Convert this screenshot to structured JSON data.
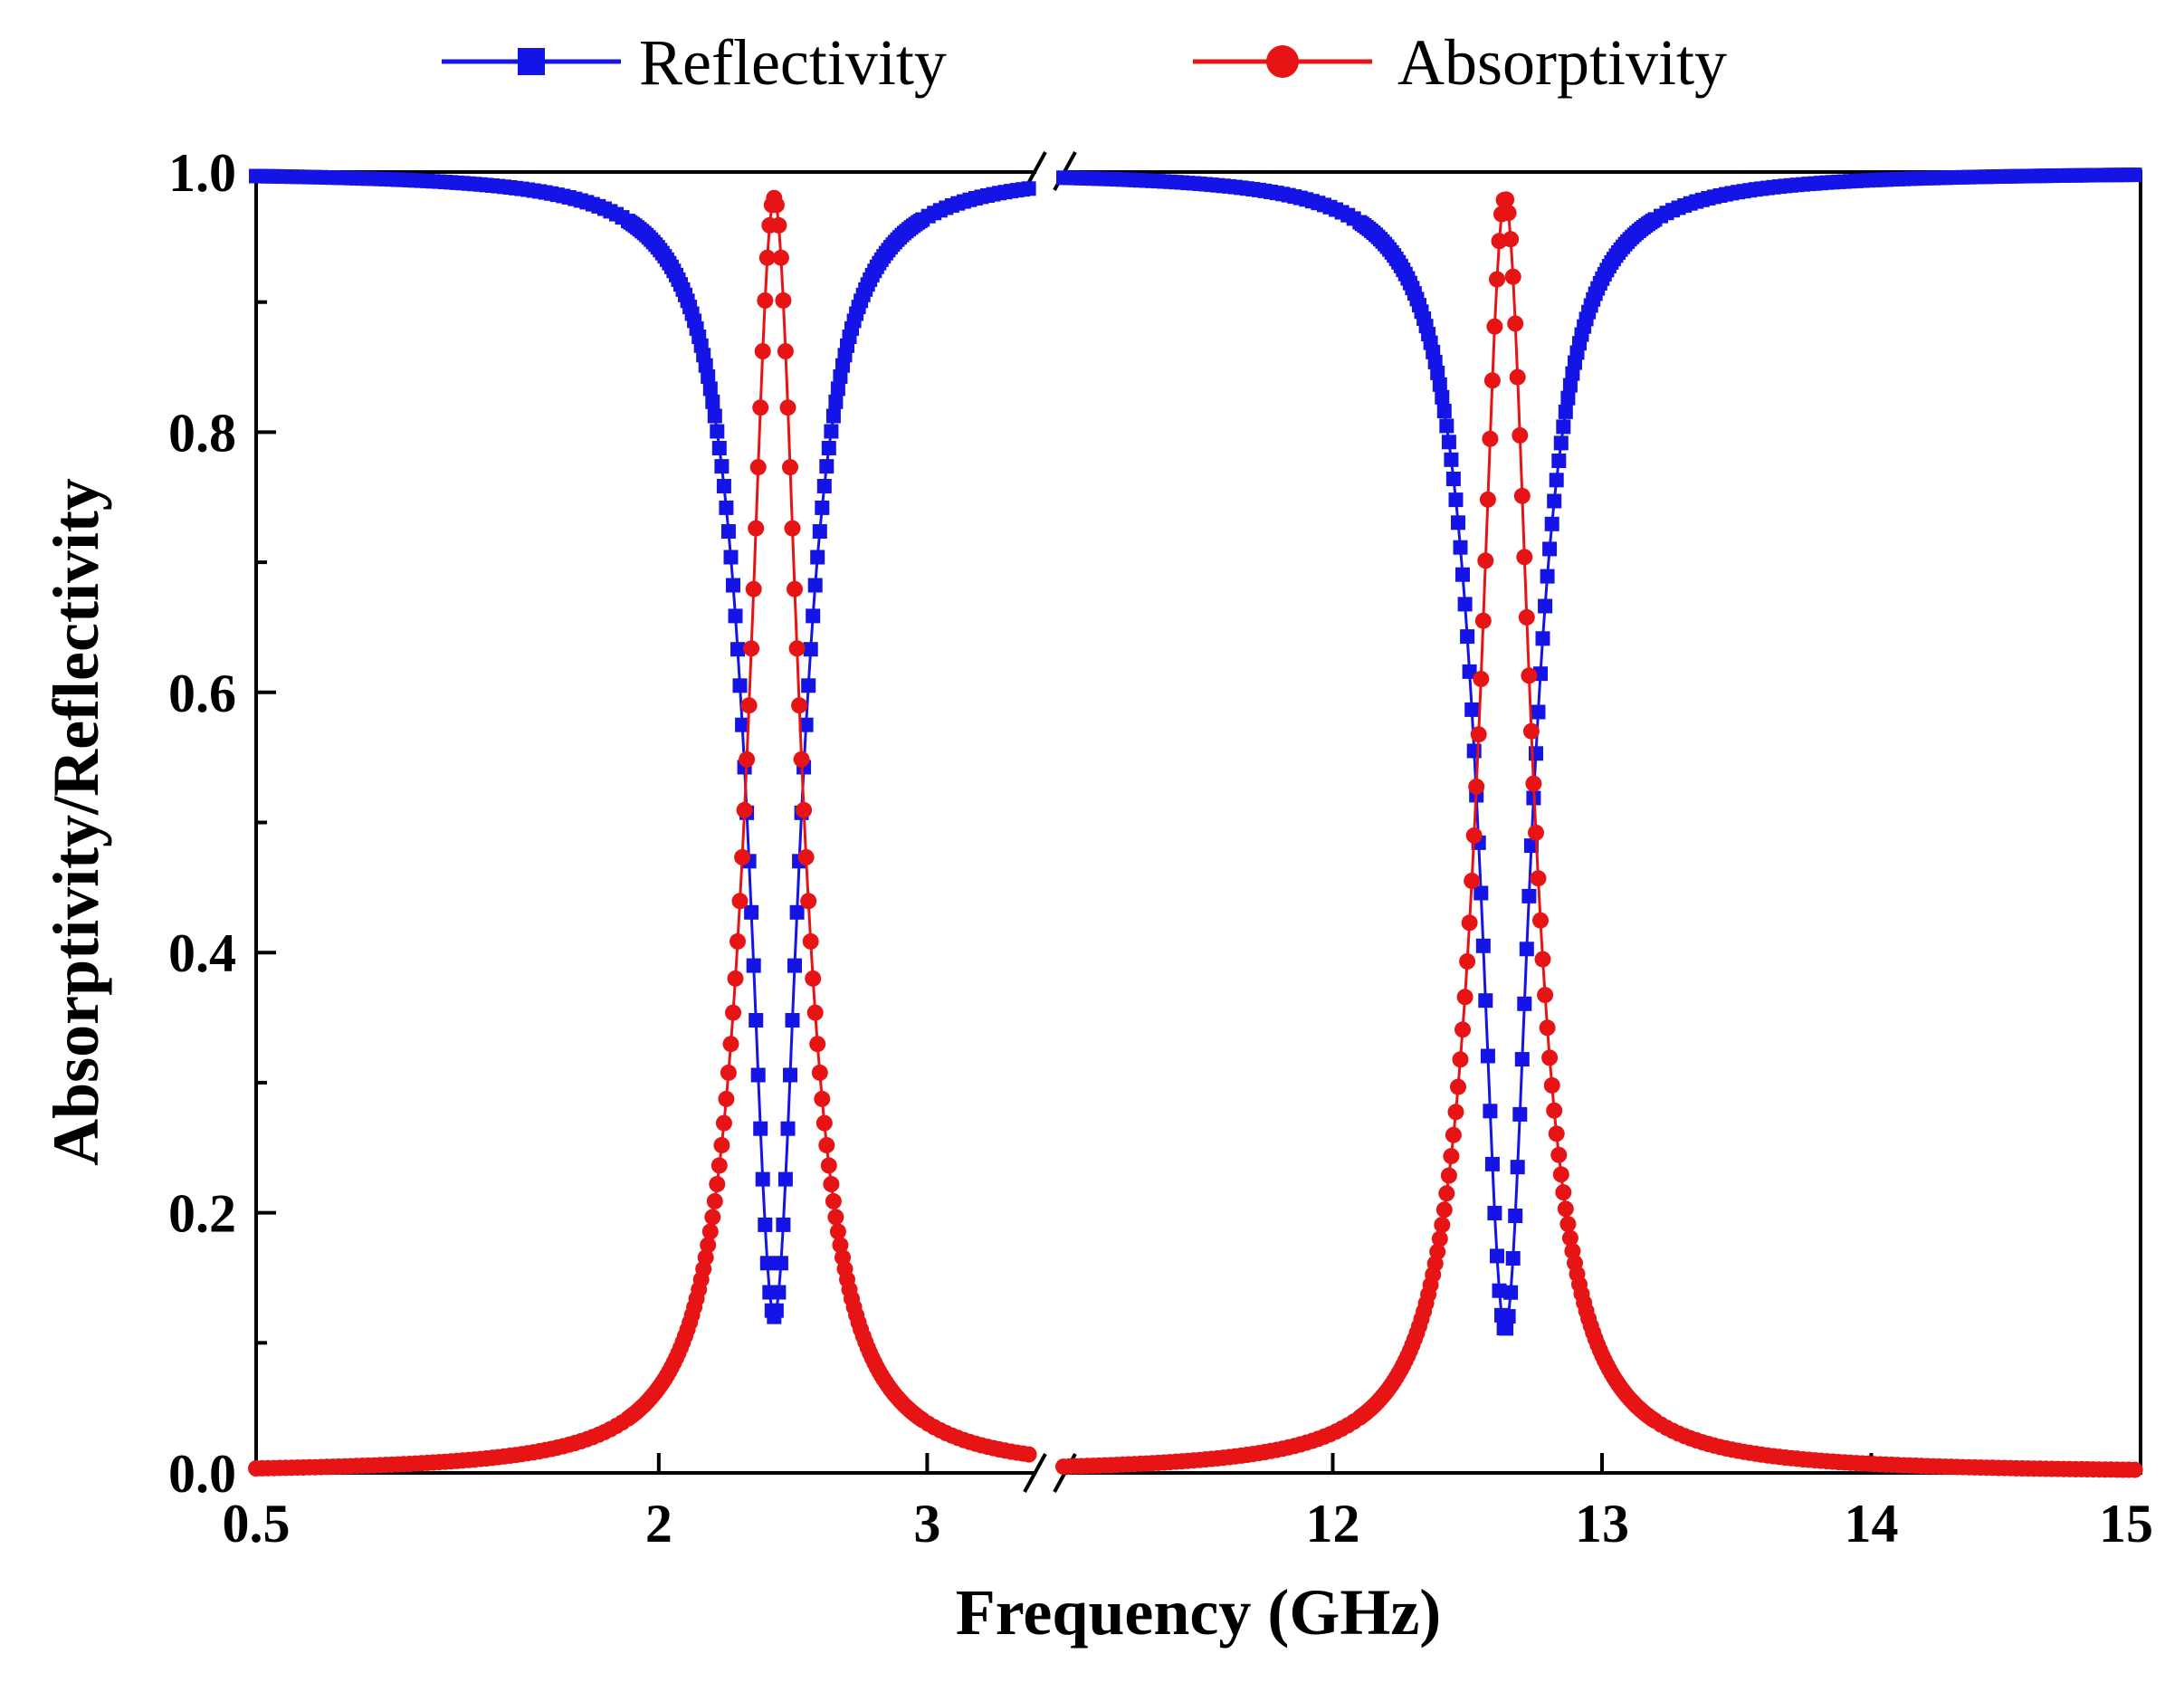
{
  "chart_data": {
    "type": "line",
    "title": "",
    "xlabel": "Frequency (GHz)",
    "ylabel": "Absorptivity/Reflectivity",
    "ylim": [
      0,
      1
    ],
    "yticks": [
      0.0,
      0.2,
      0.4,
      0.6,
      0.8,
      1.0
    ],
    "ytick_labels": [
      "0.0",
      "0.2",
      "0.4",
      "0.6",
      "0.8",
      "1.0"
    ],
    "axis_break": true,
    "segments": [
      {
        "xlim": [
          0.5,
          3.4
        ],
        "xticks": [
          0.5,
          2,
          3
        ],
        "xtick_labels": [
          "0.5",
          "2",
          "3"
        ]
      },
      {
        "xlim": [
          11.0,
          15.0
        ],
        "xticks": [
          12,
          13,
          14,
          15
        ],
        "xtick_labels": [
          "12",
          "13",
          "14",
          "15"
        ]
      }
    ],
    "legend_position": "top-center",
    "series": [
      {
        "name": "Reflectivity",
        "color": "#1414e6",
        "marker": "square",
        "resonances": [
          {
            "segment": 0,
            "x_start": 0.5,
            "x_end": 3.4,
            "f0": 2.43,
            "width": 0.115,
            "depth": 0.88
          },
          {
            "segment": 1,
            "x_start": 11.0,
            "x_end": 15.0,
            "f0": 12.64,
            "width": 0.115,
            "depth": 0.89
          }
        ],
        "summary": {
          "min_values": [
            0.12,
            0.11
          ],
          "min_at": [
            2.43,
            12.64
          ],
          "baseline": 1.0
        }
      },
      {
        "name": "Absorptivity",
        "color": "#e61414",
        "marker": "circle",
        "resonances": [
          {
            "segment": 0,
            "x_start": 0.5,
            "x_end": 3.4,
            "f0": 2.43,
            "width": 0.115,
            "depth": 0.98
          },
          {
            "segment": 1,
            "x_start": 11.0,
            "x_end": 15.0,
            "f0": 12.64,
            "width": 0.115,
            "depth": 0.98
          }
        ],
        "summary": {
          "peak_values": [
            0.98,
            0.98
          ],
          "peak_at": [
            2.43,
            12.64
          ],
          "baseline": 0.0
        }
      }
    ]
  }
}
